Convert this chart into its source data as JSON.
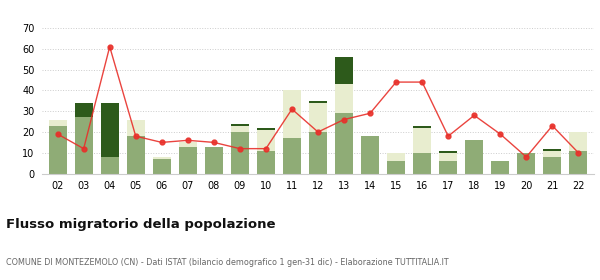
{
  "years": [
    "02",
    "03",
    "04",
    "05",
    "06",
    "07",
    "08",
    "09",
    "10",
    "11",
    "12",
    "13",
    "14",
    "15",
    "16",
    "17",
    "18",
    "19",
    "20",
    "21",
    "22"
  ],
  "iscritti_comuni": [
    23,
    27,
    8,
    18,
    7,
    13,
    13,
    20,
    11,
    17,
    20,
    29,
    18,
    6,
    10,
    6,
    16,
    6,
    10,
    8,
    11
  ],
  "iscritti_estero": [
    3,
    0,
    0,
    8,
    1,
    2,
    0,
    3,
    10,
    23,
    14,
    14,
    0,
    4,
    12,
    4,
    0,
    0,
    0,
    3,
    9
  ],
  "iscritti_altri": [
    0,
    7,
    26,
    0,
    0,
    0,
    0,
    1,
    1,
    0,
    1,
    13,
    0,
    0,
    1,
    1,
    0,
    0,
    0,
    1,
    0
  ],
  "cancellati": [
    19,
    12,
    61,
    18,
    15,
    16,
    15,
    12,
    12,
    31,
    20,
    26,
    29,
    44,
    44,
    18,
    28,
    19,
    8,
    23,
    10
  ],
  "color_comuni": "#8fac76",
  "color_estero": "#e8edcf",
  "color_altri": "#2d5a1b",
  "color_cancellati": "#e8302a",
  "ylim": [
    0,
    70
  ],
  "yticks": [
    0,
    10,
    20,
    30,
    40,
    50,
    60,
    70
  ],
  "title": "Flusso migratorio della popolazione",
  "subtitle": "COMUNE DI MONTEZEMOLO (CN) - Dati ISTAT (bilancio demografico 1 gen-31 dic) - Elaborazione TUTTITALIA.IT",
  "background_color": "#ffffff"
}
